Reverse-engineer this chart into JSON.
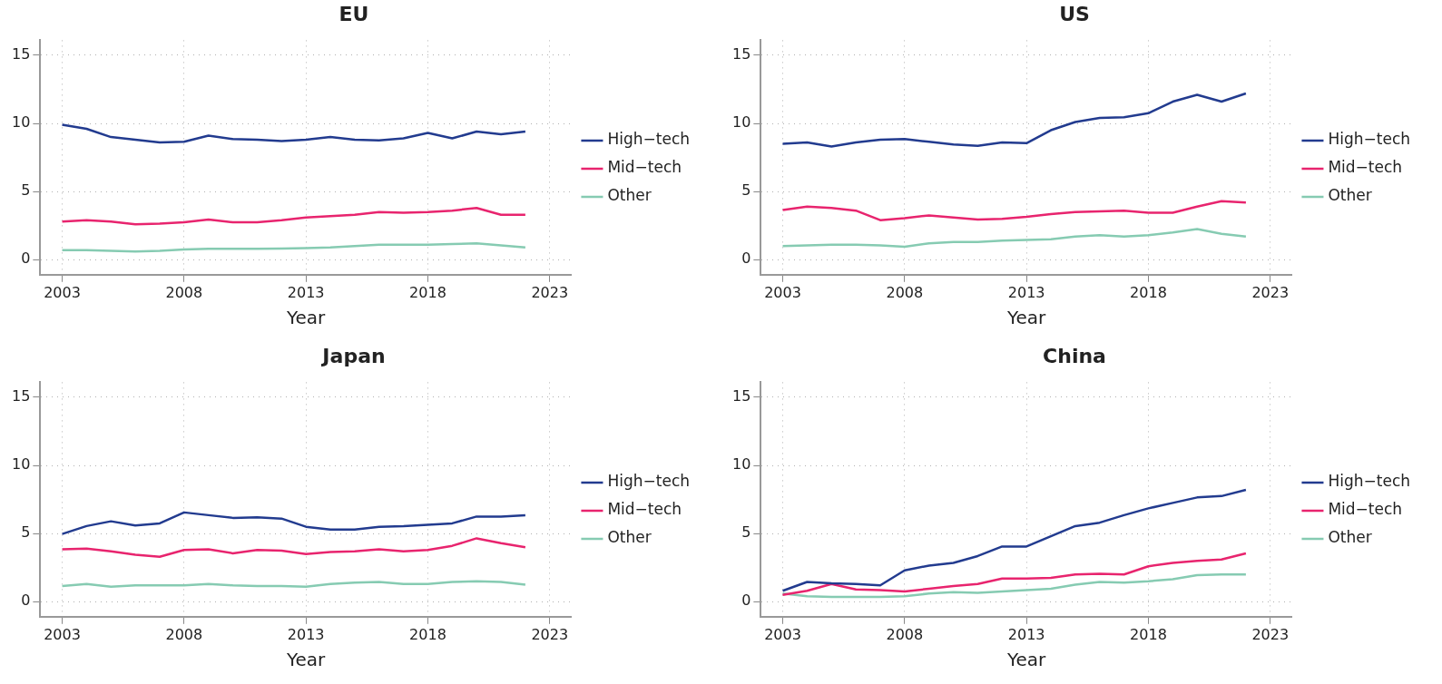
{
  "chart_data": [
    {
      "type": "line",
      "title": "EU",
      "xlabel": "Year",
      "x": [
        2003,
        2004,
        2005,
        2006,
        2007,
        2008,
        2009,
        2010,
        2011,
        2012,
        2013,
        2014,
        2015,
        2016,
        2017,
        2018,
        2019,
        2020,
        2021,
        2022
      ],
      "xlim": [
        2002.1,
        2023.9
      ],
      "xticks": [
        2003,
        2008,
        2013,
        2018,
        2023
      ],
      "ylim": [
        -1.1,
        16.1
      ],
      "yticks": [
        0,
        5,
        10,
        15
      ],
      "grid": true,
      "legend": "right",
      "line_style": "solid",
      "marker": "none",
      "series": [
        {
          "name": "High−tech",
          "color": "#223b8f",
          "values": [
            9.9,
            9.6,
            9.0,
            8.8,
            8.6,
            8.65,
            9.1,
            8.85,
            8.8,
            8.7,
            8.8,
            9.0,
            8.8,
            8.75,
            8.9,
            9.3,
            8.9,
            9.4,
            9.2,
            9.4
          ]
        },
        {
          "name": "Mid−tech",
          "color": "#e8246e",
          "values": [
            2.8,
            2.9,
            2.8,
            2.6,
            2.65,
            2.75,
            2.95,
            2.75,
            2.75,
            2.9,
            3.1,
            3.2,
            3.3,
            3.5,
            3.45,
            3.5,
            3.6,
            3.8,
            3.3,
            3.3
          ]
        },
        {
          "name": "Other",
          "color": "#86cbb2",
          "values": [
            0.7,
            0.7,
            0.65,
            0.6,
            0.65,
            0.75,
            0.8,
            0.8,
            0.8,
            0.82,
            0.85,
            0.9,
            1.0,
            1.1,
            1.1,
            1.1,
            1.15,
            1.2,
            1.05,
            0.9
          ]
        }
      ]
    },
    {
      "type": "line",
      "title": "US",
      "xlabel": "Year",
      "x": [
        2003,
        2004,
        2005,
        2006,
        2007,
        2008,
        2009,
        2010,
        2011,
        2012,
        2013,
        2014,
        2015,
        2016,
        2017,
        2018,
        2019,
        2020,
        2021,
        2022
      ],
      "xlim": [
        2002.1,
        2023.9
      ],
      "xticks": [
        2003,
        2008,
        2013,
        2018,
        2023
      ],
      "ylim": [
        -1.1,
        16.1
      ],
      "yticks": [
        0,
        5,
        10,
        15
      ],
      "grid": true,
      "legend": "right",
      "line_style": "solid",
      "marker": "none",
      "series": [
        {
          "name": "High−tech",
          "color": "#223b8f",
          "values": [
            8.5,
            8.6,
            8.3,
            8.6,
            8.8,
            8.85,
            8.65,
            8.45,
            8.35,
            8.6,
            8.55,
            9.5,
            10.1,
            10.4,
            10.45,
            10.75,
            11.6,
            12.1,
            11.6,
            12.2
          ]
        },
        {
          "name": "Mid−tech",
          "color": "#e8246e",
          "values": [
            3.65,
            3.9,
            3.8,
            3.6,
            2.9,
            3.05,
            3.25,
            3.1,
            2.95,
            3.0,
            3.15,
            3.35,
            3.5,
            3.55,
            3.6,
            3.45,
            3.45,
            3.9,
            4.3,
            4.2
          ]
        },
        {
          "name": "Other",
          "color": "#86cbb2",
          "values": [
            1.0,
            1.05,
            1.1,
            1.1,
            1.05,
            0.95,
            1.2,
            1.3,
            1.3,
            1.4,
            1.45,
            1.5,
            1.7,
            1.8,
            1.7,
            1.8,
            2.0,
            2.25,
            1.9,
            1.7
          ]
        }
      ]
    },
    {
      "type": "line",
      "title": "Japan",
      "xlabel": "Year",
      "x": [
        2003,
        2004,
        2005,
        2006,
        2007,
        2008,
        2009,
        2010,
        2011,
        2012,
        2013,
        2014,
        2015,
        2016,
        2017,
        2018,
        2019,
        2020,
        2021,
        2022
      ],
      "xlim": [
        2002.1,
        2023.9
      ],
      "xticks": [
        2003,
        2008,
        2013,
        2018,
        2023
      ],
      "ylim": [
        -1.1,
        16.1
      ],
      "yticks": [
        0,
        5,
        10,
        15
      ],
      "grid": true,
      "legend": "right",
      "line_style": "solid",
      "marker": "none",
      "series": [
        {
          "name": "High−tech",
          "color": "#223b8f",
          "values": [
            4.97,
            5.55,
            5.9,
            5.6,
            5.75,
            6.55,
            6.35,
            6.15,
            6.2,
            6.1,
            5.5,
            5.3,
            5.3,
            5.5,
            5.55,
            5.65,
            5.75,
            6.25,
            6.25,
            6.35
          ]
        },
        {
          "name": "Mid−tech",
          "color": "#e8246e",
          "values": [
            3.85,
            3.9,
            3.7,
            3.45,
            3.3,
            3.8,
            3.85,
            3.55,
            3.8,
            3.75,
            3.5,
            3.65,
            3.7,
            3.85,
            3.7,
            3.8,
            4.1,
            4.65,
            4.3,
            4.0
          ]
        },
        {
          "name": "Other",
          "color": "#86cbb2",
          "values": [
            1.15,
            1.3,
            1.1,
            1.2,
            1.2,
            1.2,
            1.3,
            1.2,
            1.15,
            1.15,
            1.1,
            1.3,
            1.4,
            1.45,
            1.3,
            1.3,
            1.45,
            1.5,
            1.45,
            1.25
          ]
        }
      ]
    },
    {
      "type": "line",
      "title": "China",
      "xlabel": "Year",
      "x": [
        2003,
        2004,
        2005,
        2006,
        2007,
        2008,
        2009,
        2010,
        2011,
        2012,
        2013,
        2014,
        2015,
        2016,
        2017,
        2018,
        2019,
        2020,
        2021,
        2022
      ],
      "xlim": [
        2002.1,
        2023.9
      ],
      "xticks": [
        2003,
        2008,
        2013,
        2018,
        2023
      ],
      "ylim": [
        -1.1,
        16.1
      ],
      "yticks": [
        0,
        5,
        10,
        15
      ],
      "grid": true,
      "legend": "right",
      "line_style": "solid",
      "marker": "none",
      "series": [
        {
          "name": "High−tech",
          "color": "#223b8f",
          "values": [
            0.8,
            1.45,
            1.35,
            1.3,
            1.2,
            2.3,
            2.65,
            2.85,
            3.35,
            4.05,
            4.05,
            4.8,
            5.55,
            5.8,
            6.35,
            6.85,
            7.25,
            7.65,
            7.75,
            8.2
          ]
        },
        {
          "name": "Mid−tech",
          "color": "#e8246e",
          "values": [
            0.5,
            0.8,
            1.3,
            0.9,
            0.85,
            0.75,
            0.95,
            1.15,
            1.3,
            1.7,
            1.7,
            1.75,
            2.0,
            2.05,
            2.0,
            2.6,
            2.85,
            3.0,
            3.1,
            3.55
          ]
        },
        {
          "name": "Other",
          "color": "#86cbb2",
          "values": [
            0.6,
            0.4,
            0.35,
            0.35,
            0.35,
            0.4,
            0.6,
            0.7,
            0.65,
            0.75,
            0.85,
            0.95,
            1.25,
            1.45,
            1.4,
            1.5,
            1.65,
            1.95,
            2.0,
            2.0
          ]
        }
      ]
    }
  ]
}
